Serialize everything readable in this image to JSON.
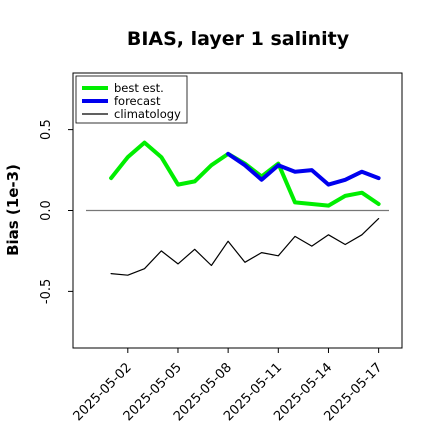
{
  "chart_data": {
    "type": "line",
    "title": "BIAS, layer 1 salinity",
    "ylabel": "Bias (1e-3)",
    "xlabel": "",
    "x": [
      "2025-05-01",
      "2025-05-02",
      "2025-05-03",
      "2025-05-04",
      "2025-05-05",
      "2025-05-06",
      "2025-05-07",
      "2025-05-08",
      "2025-05-09",
      "2025-05-10",
      "2025-05-11",
      "2025-05-12",
      "2025-05-13",
      "2025-05-14",
      "2025-05-15",
      "2025-05-16",
      "2025-05-17"
    ],
    "xlim": [
      "2024-04-29T12:00",
      "2025-05-17T12:00"
    ],
    "ylim": [
      -0.85,
      0.85
    ],
    "xticks": [
      "2025-05-02",
      "2025-05-05",
      "2025-05-08",
      "2025-05-11",
      "2025-05-14",
      "2025-05-17"
    ],
    "xtick_highlight": "2025-05-08",
    "xtick_highlight_color": "#2e8b57",
    "yticks": [
      -0.5,
      0.0,
      0.5
    ],
    "ytick_labels": [
      "-0.5",
      "0.0",
      "0.5"
    ],
    "zero_line": true,
    "grid": false,
    "legend_position": "top-left",
    "series": [
      {
        "name": "best est.",
        "color": "#00ee00",
        "x": [
          "2025-05-01",
          "2025-05-02",
          "2025-05-03",
          "2025-05-04",
          "2025-05-05",
          "2025-05-06",
          "2025-05-07",
          "2025-05-08",
          "2025-05-09",
          "2025-05-10",
          "2025-05-11",
          "2025-05-12",
          "2025-05-13",
          "2025-05-14",
          "2025-05-15",
          "2025-05-16",
          "2025-05-17"
        ],
        "values": [
          0.2,
          0.33,
          0.42,
          0.33,
          0.16,
          0.18,
          0.28,
          0.35,
          0.29,
          0.21,
          0.29,
          0.05,
          0.04,
          0.03,
          0.09,
          0.11,
          0.04
        ]
      },
      {
        "name": "forecast",
        "color": "#0000ee",
        "x": [
          "2025-05-08",
          "2025-05-09",
          "2025-05-10",
          "2025-05-11",
          "2025-05-12",
          "2025-05-13",
          "2025-05-14",
          "2025-05-15",
          "2025-05-16",
          "2025-05-17"
        ],
        "values": [
          0.35,
          0.28,
          0.19,
          0.28,
          0.24,
          0.25,
          0.16,
          0.19,
          0.24,
          0.2
        ]
      },
      {
        "name": "climatology",
        "color": "#000000",
        "x": [
          "2025-05-01",
          "2025-05-02",
          "2025-05-03",
          "2025-05-04",
          "2025-05-05",
          "2025-05-06",
          "2025-05-07",
          "2025-05-08",
          "2025-05-09",
          "2025-05-10",
          "2025-05-11",
          "2025-05-12",
          "2025-05-13",
          "2025-05-14",
          "2025-05-15",
          "2025-05-16",
          "2025-05-17"
        ],
        "values": [
          -0.39,
          -0.4,
          -0.36,
          -0.25,
          -0.33,
          -0.24,
          -0.34,
          -0.19,
          -0.32,
          -0.26,
          -0.28,
          -0.16,
          -0.22,
          -0.15,
          -0.21,
          -0.15,
          -0.05
        ]
      }
    ]
  }
}
